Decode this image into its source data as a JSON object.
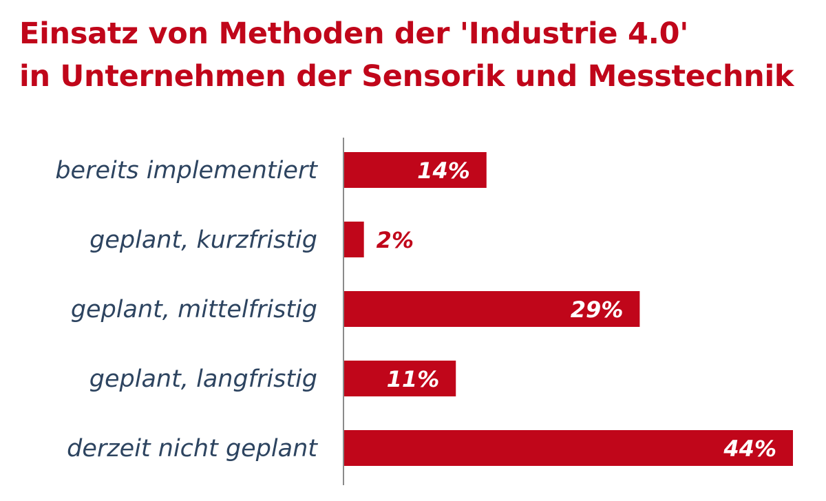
{
  "title_line1": "Einsatz von Methoden der 'Industrie 4.0'",
  "title_line2": "in Unternehmen der Sensorik und Messtechnik",
  "colors": {
    "bar": "#c0061a",
    "title": "#c0061a",
    "category_label": "#2d4460",
    "axis": "#8a8a8a",
    "value_inside": "#ffffff",
    "value_outside": "#c0061a"
  },
  "chart_data": {
    "type": "bar",
    "orientation": "horizontal",
    "title": "Einsatz von Methoden der 'Industrie 4.0' in Unternehmen der Sensorik und Messtechnik",
    "categories": [
      "bereits implementiert",
      "geplant, kurzfristig",
      "geplant, mittelfristig",
      "geplant, langfristig",
      "derzeit nicht geplant"
    ],
    "values": [
      14,
      2,
      29,
      11,
      44
    ],
    "value_labels": [
      "14%",
      "2%",
      "29%",
      "11%",
      "44%"
    ],
    "unit": "%",
    "xlim": [
      0,
      44
    ],
    "grid": false,
    "legend": "none"
  }
}
